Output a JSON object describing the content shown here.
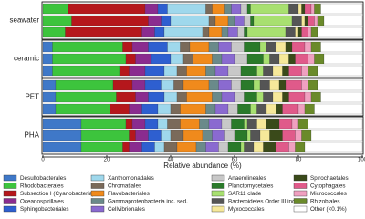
{
  "chart_data": {
    "type": "stacked-bar-horizontal",
    "xlabel": "Relative abundance (%)",
    "xlim": [
      0,
      100
    ],
    "xticks": [
      0,
      20,
      40,
      60,
      80,
      100
    ],
    "categories": [
      null,
      "seawater",
      null,
      null,
      "ceramic",
      null,
      null,
      "PET",
      null,
      null,
      "PHA",
      null
    ],
    "series": [
      {
        "name": "Desulfobacterales",
        "color": "#3f78c8",
        "values": [
          0,
          0,
          0,
          3,
          3,
          3,
          4,
          4,
          4,
          12,
          12,
          12
        ]
      },
      {
        "name": "Rhodobacterales",
        "color": "#3dc43d",
        "values": [
          8,
          9,
          7,
          22,
          23,
          21,
          18,
          19,
          17,
          14,
          15,
          13
        ]
      },
      {
        "name": "Subsection I (Cyanobacteria)",
        "color": "#b5171c",
        "values": [
          24,
          24,
          24,
          3,
          3,
          3,
          6,
          6,
          6,
          2,
          2,
          2
        ]
      },
      {
        "name": "Oceanospirillales",
        "color": "#8a2c8f",
        "values": [
          4,
          4,
          4,
          5,
          5,
          5,
          4,
          4,
          4,
          4,
          4,
          4
        ]
      },
      {
        "name": "Sphingobacteriales",
        "color": "#2e5fd0",
        "values": [
          3,
          3,
          3,
          6,
          6,
          6,
          5,
          5,
          5,
          4,
          4,
          4
        ]
      },
      {
        "name": "Xanthomonadales",
        "color": "#9fd8ec",
        "values": [
          12,
          12,
          12,
          4,
          4,
          4,
          4,
          4,
          4,
          3,
          3,
          3
        ]
      },
      {
        "name": "Chromatiales",
        "color": "#7a6a5a",
        "values": [
          2,
          2,
          2,
          3,
          3,
          3,
          3,
          3,
          3,
          4,
          4,
          4
        ]
      },
      {
        "name": "Flavobacteriales",
        "color": "#f08a1c",
        "values": [
          4,
          4,
          4,
          6,
          6,
          6,
          8,
          8,
          8,
          6,
          6,
          6
        ]
      },
      {
        "name": "Gammaproteobacteria inc. sed.",
        "color": "#6a8a8a",
        "values": [
          2,
          2,
          2,
          3,
          3,
          3,
          3,
          3,
          3,
          3,
          3,
          3
        ]
      },
      {
        "name": "Cellvibrionales",
        "color": "#8a6ad0",
        "values": [
          3,
          3,
          3,
          4,
          4,
          4,
          4,
          4,
          4,
          4,
          4,
          4
        ]
      },
      {
        "name": "Anaerolineales",
        "color": "#c8c8c8",
        "values": [
          2,
          2,
          2,
          4,
          4,
          4,
          3,
          3,
          3,
          3,
          3,
          3
        ]
      },
      {
        "name": "Planctomycetales",
        "color": "#2a7a2a",
        "values": [
          1,
          1,
          1,
          5,
          5,
          5,
          4,
          4,
          4,
          4,
          4,
          4
        ]
      },
      {
        "name": "SAR11 clade",
        "color": "#a8e070",
        "values": [
          12,
          12,
          12,
          2,
          2,
          2,
          2,
          2,
          2,
          1,
          1,
          1
        ]
      },
      {
        "name": "Bacteroidetes Order III inc. sed.",
        "color": "#555555",
        "values": [
          3,
          3,
          3,
          3,
          3,
          3,
          3,
          3,
          3,
          3,
          3,
          3
        ]
      },
      {
        "name": "Myxococcales",
        "color": "#f6e89a",
        "values": [
          1,
          1,
          1,
          3,
          3,
          3,
          3,
          3,
          3,
          3,
          3,
          3
        ]
      },
      {
        "name": "Spirochaetales",
        "color": "#3a4a1a",
        "values": [
          1,
          1,
          1,
          2,
          2,
          2,
          2,
          2,
          2,
          4,
          4,
          4
        ]
      },
      {
        "name": "Cytophagales",
        "color": "#e05a8a",
        "values": [
          2,
          2,
          2,
          4,
          4,
          4,
          5,
          5,
          5,
          4,
          4,
          4
        ]
      },
      {
        "name": "Micrococcales",
        "color": "#f0a0c0",
        "values": [
          1,
          1,
          1,
          2,
          2,
          2,
          2,
          2,
          2,
          2,
          2,
          2
        ]
      },
      {
        "name": "Rhizobiales",
        "color": "#6a8a2a",
        "values": [
          2,
          2,
          2,
          3,
          3,
          3,
          3,
          3,
          3,
          3,
          3,
          3
        ]
      },
      {
        "name": "Other (<0.1%)",
        "color": "#ffffff",
        "values": [
          13,
          12,
          14,
          13,
          12,
          14,
          14,
          13,
          15,
          17,
          16,
          18
        ]
      }
    ]
  }
}
